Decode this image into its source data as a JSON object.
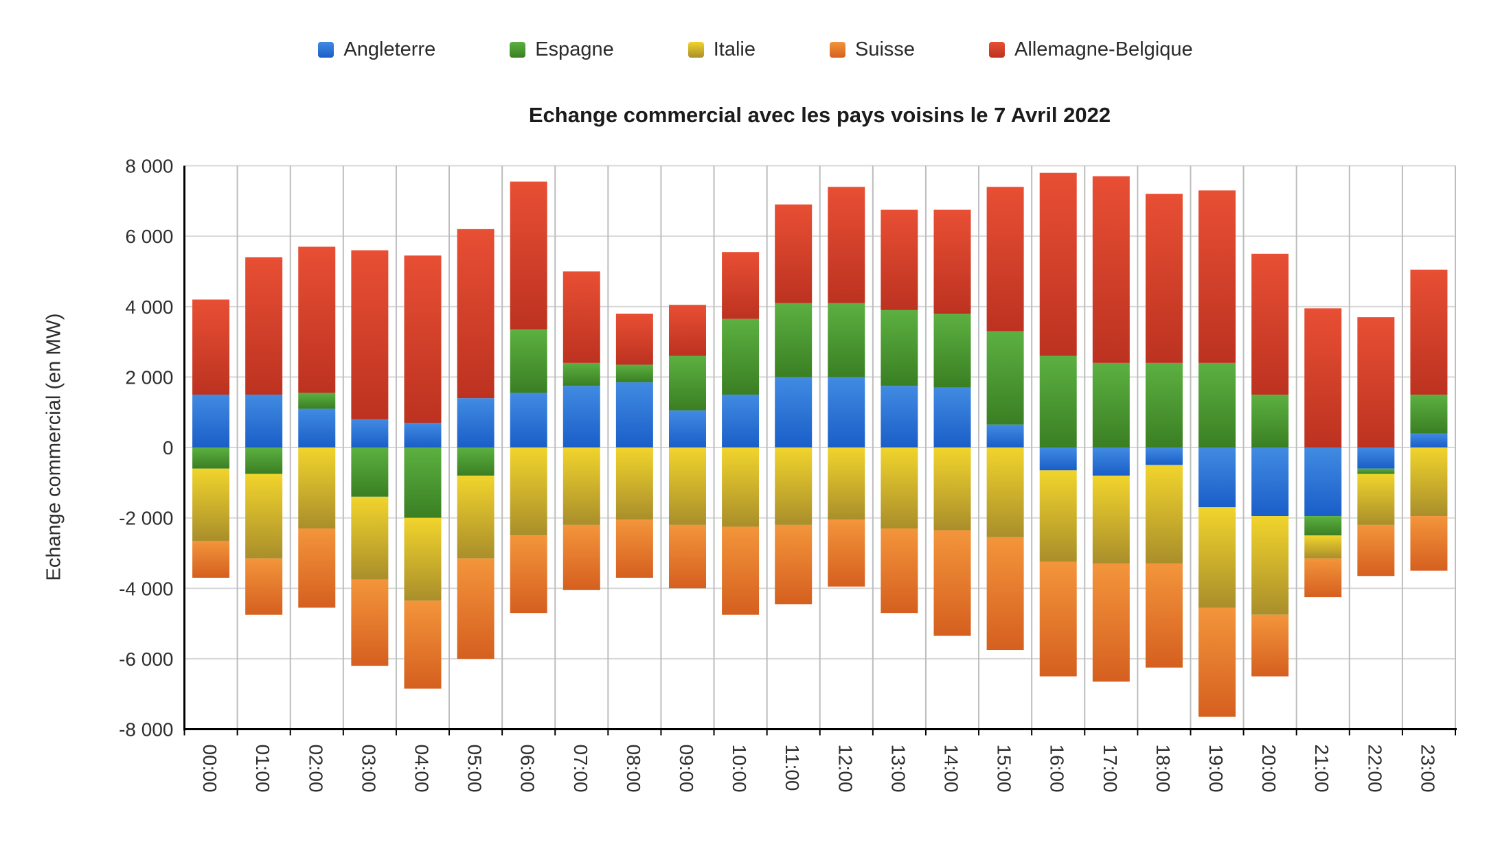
{
  "header": {
    "title": "Echange commercial avec les pays voisins le 7 Avril 2022"
  },
  "axes": {
    "y_title": "Echange commercial (en MW)",
    "y_ticks": [
      "8 000",
      "6 000",
      "4 000",
      "2 000",
      "0",
      "-2 000",
      "-4 000",
      "-6 000",
      "-8 000"
    ],
    "y_tick_values": [
      8000,
      6000,
      4000,
      2000,
      0,
      -2000,
      -4000,
      -6000,
      -8000
    ]
  },
  "legend": {
    "items": [
      {
        "label": "Angleterre",
        "color": "#2f7ad8"
      },
      {
        "label": "Espagne",
        "color": "#49a032"
      },
      {
        "label": "Italie",
        "color": "#e6c822"
      },
      {
        "label": "Suisse",
        "color": "#ee8331"
      },
      {
        "label": "Allemagne-Belgique",
        "color": "#e2402c"
      }
    ]
  },
  "chart_data": {
    "type": "bar",
    "stacked": true,
    "title": "Echange commercial avec les pays voisins le 7 Avril 2022",
    "xlabel": "",
    "ylabel": "Echange commercial (en MW)",
    "ylim": [
      -8000,
      8000
    ],
    "ytick_step": 2000,
    "grid": true,
    "legend_position": "top",
    "unit": "MW",
    "categories": [
      "00:00",
      "01:00",
      "02:00",
      "03:00",
      "04:00",
      "05:00",
      "06:00",
      "07:00",
      "08:00",
      "09:00",
      "10:00",
      "11:00",
      "12:00",
      "13:00",
      "14:00",
      "15:00",
      "16:00",
      "17:00",
      "18:00",
      "19:00",
      "20:00",
      "21:00",
      "22:00",
      "23:00"
    ],
    "series": [
      {
        "name": "Angleterre",
        "color": "#2f7ad8",
        "gradient": [
          "#418be2",
          "#1a5ec8"
        ],
        "values": [
          1500,
          1500,
          1100,
          800,
          700,
          1400,
          1550,
          1750,
          1850,
          1050,
          1500,
          2000,
          2000,
          1750,
          1700,
          650,
          -650,
          -800,
          -500,
          -1700,
          -1950,
          -1950,
          -600,
          400
        ]
      },
      {
        "name": "Espagne",
        "color": "#49a032",
        "gradient": [
          "#5cb041",
          "#3a7f23"
        ],
        "values": [
          -600,
          -750,
          450,
          -1400,
          -2000,
          -800,
          1800,
          650,
          500,
          1550,
          2150,
          2100,
          2100,
          2150,
          2100,
          2650,
          2600,
          2400,
          2400,
          2400,
          1500,
          -550,
          -150,
          1100
        ]
      },
      {
        "name": "Italie",
        "color": "#e6c822",
        "gradient": [
          "#f1d42c",
          "#a98e2b"
        ],
        "values": [
          -2050,
          -2400,
          -2300,
          -2350,
          -2350,
          -2350,
          -2500,
          -2200,
          -2050,
          -2200,
          -2250,
          -2200,
          -2050,
          -2300,
          -2350,
          -2550,
          -2600,
          -2500,
          -2800,
          -2850,
          -2800,
          -650,
          -1450,
          -1950
        ]
      },
      {
        "name": "Suisse",
        "color": "#ee8331",
        "gradient": [
          "#f3953b",
          "#d55f1f"
        ],
        "values": [
          -1050,
          -1600,
          -2250,
          -2450,
          -2500,
          -2850,
          -2200,
          -1850,
          -1650,
          -1800,
          -2500,
          -2250,
          -1900,
          -2400,
          -3000,
          -3200,
          -3250,
          -3350,
          -2950,
          -3100,
          -1750,
          -1100,
          -1450,
          -1550
        ]
      },
      {
        "name": "Allemagne-Belgique",
        "color": "#e2402c",
        "gradient": [
          "#e84f34",
          "#bc3220"
        ],
        "values": [
          2700,
          3900,
          4150,
          4800,
          4750,
          4800,
          4200,
          2600,
          1450,
          1450,
          1900,
          2800,
          3300,
          2850,
          2950,
          4100,
          5200,
          5300,
          4800,
          4900,
          4000,
          3950,
          3700,
          3550
        ]
      }
    ]
  }
}
